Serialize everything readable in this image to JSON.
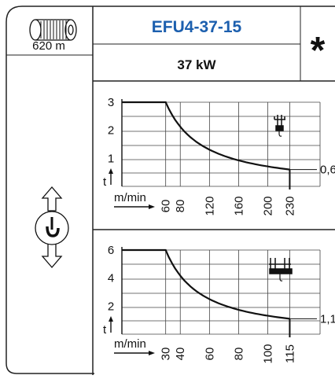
{
  "header": {
    "model": "EFU4-37-15",
    "power": "37 kW",
    "marker": "*",
    "rope_length": "620 m"
  },
  "icons": {
    "drum": "rope-drum-icon",
    "hoist": "hoist-direction-icon",
    "single_hook": "single-hook-block-icon",
    "double_hook": "double-hook-block-icon"
  },
  "chart_data": [
    {
      "type": "line",
      "ylabel": "t",
      "xunit": "m/min",
      "x_ticks": [
        "60",
        "80",
        "120",
        "160",
        "200",
        "230"
      ],
      "x_tick_values": [
        60,
        80,
        120,
        160,
        200,
        230
      ],
      "y_ticks": [
        "3",
        "2",
        "1"
      ],
      "y_tick_values": [
        3,
        2,
        1
      ],
      "xlim": [
        0,
        250
      ],
      "ylim": [
        0,
        3
      ],
      "end_value_label": "0,6",
      "grid": true,
      "series": [
        {
          "x": [
            0,
            60,
            80,
            120,
            160,
            200,
            230
          ],
          "y": [
            3,
            3,
            2.3,
            1.55,
            1.12,
            0.82,
            0.6
          ]
        }
      ]
    },
    {
      "type": "line",
      "ylabel": "t",
      "xunit": "m/min",
      "x_ticks": [
        "30",
        "40",
        "60",
        "80",
        "100",
        "115"
      ],
      "x_tick_values": [
        30,
        40,
        60,
        80,
        100,
        115
      ],
      "y_ticks": [
        "6",
        "4",
        "2"
      ],
      "y_tick_values": [
        6,
        4,
        2
      ],
      "xlim": [
        0,
        125
      ],
      "ylim": [
        0,
        6
      ],
      "end_value_label": "1,1",
      "grid": true,
      "series": [
        {
          "x": [
            0,
            30,
            40,
            60,
            80,
            100,
            115
          ],
          "y": [
            6,
            6,
            4.6,
            3.1,
            2.3,
            1.6,
            1.1
          ]
        }
      ]
    }
  ]
}
